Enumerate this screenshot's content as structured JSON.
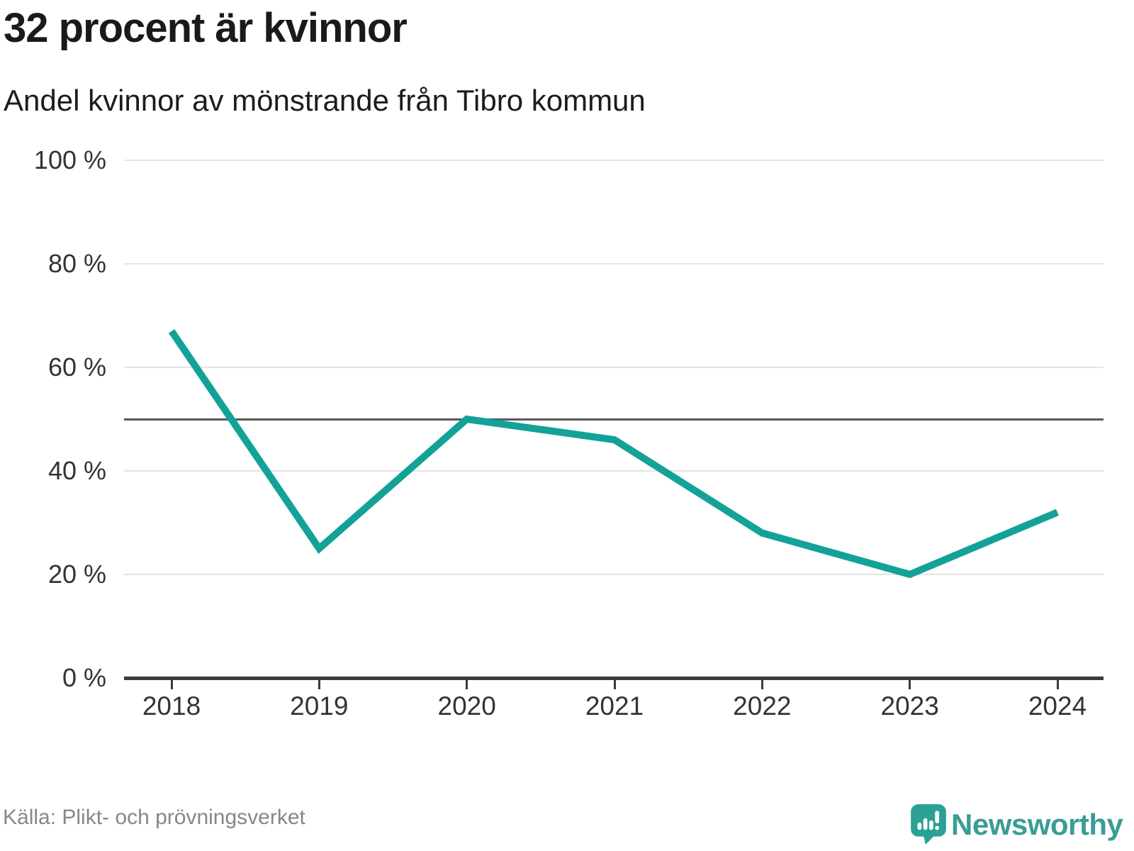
{
  "header": {
    "title": "32 procent är kvinnor",
    "subtitle": "Andel kvinnor av mönstrande från Tibro kommun"
  },
  "chart_data": {
    "type": "line",
    "title": "32 procent är kvinnor",
    "subtitle": "Andel kvinnor av mönstrande från Tibro kommun",
    "x": [
      "2018",
      "2019",
      "2020",
      "2021",
      "2022",
      "2023",
      "2024"
    ],
    "series": [
      {
        "name": "Andel kvinnor av mönstrande",
        "values": [
          67,
          25,
          50,
          46,
          28,
          20,
          32
        ],
        "color": "#12a298"
      }
    ],
    "xlabel": "",
    "ylabel": "",
    "ylim": [
      0,
      100
    ],
    "yticks": [
      0,
      20,
      40,
      60,
      80,
      100
    ],
    "ytick_suffix": " %",
    "reference_line": 50,
    "grid": "horizontal",
    "legend_position": "none"
  },
  "footer": {
    "source": "Källa: Plikt- och prövningsverket",
    "brand": "Newsworthy"
  },
  "colors": {
    "line": "#12a298",
    "reference_line": "#595959",
    "axis": "#3b3b3b",
    "gridline": "#e4e4e4",
    "tick_label": "#333333",
    "title_text": "#1a1a1a",
    "source_text": "#878787",
    "brand_teal": "#3a9d95",
    "logo_bubble": "#2ba196"
  }
}
